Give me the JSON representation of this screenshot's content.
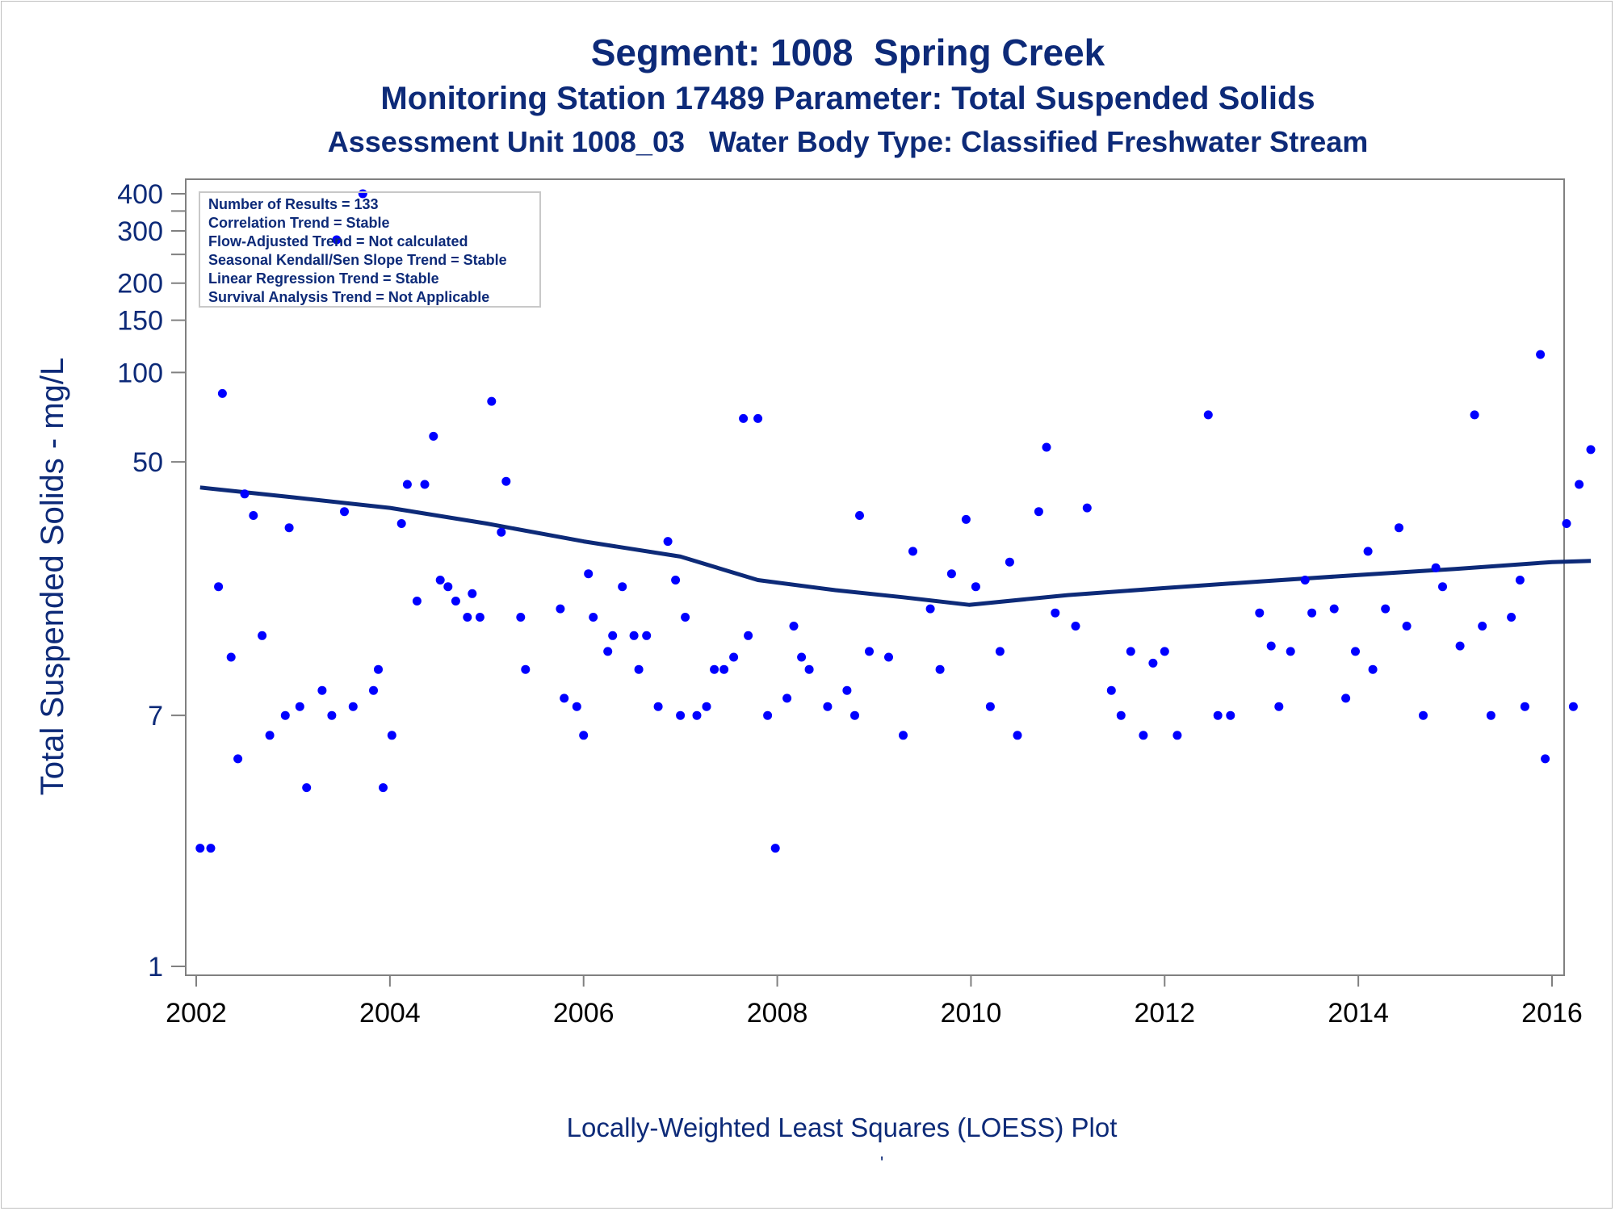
{
  "titles": {
    "line1": "Segment: 1008  Spring Creek",
    "line2": "Monitoring Station 17489 Parameter: Total Suspended Solids",
    "line3": "Assessment Unit 1008_03   Water Body Type: Classified Freshwater Stream"
  },
  "footnote": "Locally-Weighted Least Squares (LOESS) Plot",
  "footnote_mark": "'",
  "stats_box": [
    "Number of Results = 133",
    "Correlation Trend = Stable",
    "Flow-Adjusted Trend = Not calculated",
    "Seasonal Kendall/Sen Slope Trend = Stable",
    "Linear Regression Trend = Stable",
    "Survival Analysis Trend = Not Applicable"
  ],
  "colors": {
    "title": "#0d2a78",
    "points": "#0000ff",
    "loess_line": "#0d2a78",
    "axis": "#808080"
  },
  "chart_data": {
    "type": "scatter",
    "ylabel": "Total Suspended Solids - mg/L",
    "xlabel": "",
    "yscale": "log",
    "xlim": [
      2002,
      2016
    ],
    "ylim": [
      1,
      420
    ],
    "xticks": [
      "2002",
      "2004",
      "2006",
      "2008",
      "2010",
      "2012",
      "2014",
      "2016"
    ],
    "yticks": [
      {
        "value": 1,
        "label": "1"
      },
      {
        "value": 7,
        "label": "7"
      },
      {
        "value": 50,
        "label": "50"
      },
      {
        "value": 100,
        "label": "100"
      },
      {
        "value": 150,
        "label": "150"
      },
      {
        "value": 200,
        "label": "200"
      },
      {
        "value": 300,
        "label": "300"
      },
      {
        "value": 400,
        "label": "400"
      }
    ],
    "minor_yticks": [
      250,
      350
    ],
    "series": [
      {
        "name": "",
        "kind": "scatter",
        "points": [
          [
            2002.04,
            2.5
          ],
          [
            2002.15,
            2.5
          ],
          [
            2002.23,
            19
          ],
          [
            2002.27,
            85
          ],
          [
            2002.36,
            11
          ],
          [
            2002.43,
            5
          ],
          [
            2002.5,
            39
          ],
          [
            2002.59,
            33
          ],
          [
            2002.68,
            13
          ],
          [
            2002.76,
            6
          ],
          [
            2002.92,
            7
          ],
          [
            2002.96,
            30
          ],
          [
            2003.07,
            7.5
          ],
          [
            2003.14,
            4
          ],
          [
            2003.3,
            8.5
          ],
          [
            2003.4,
            7
          ],
          [
            2003.45,
            280
          ],
          [
            2003.53,
            34
          ],
          [
            2003.62,
            7.5
          ],
          [
            2003.72,
            400
          ],
          [
            2003.83,
            8.5
          ],
          [
            2003.88,
            10
          ],
          [
            2003.93,
            4
          ],
          [
            2004.02,
            6
          ],
          [
            2004.12,
            31
          ],
          [
            2004.18,
            42
          ],
          [
            2004.28,
            17
          ],
          [
            2004.36,
            42
          ],
          [
            2004.45,
            61
          ],
          [
            2004.52,
            20
          ],
          [
            2004.6,
            19
          ],
          [
            2004.68,
            17
          ],
          [
            2004.8,
            15
          ],
          [
            2004.85,
            18
          ],
          [
            2004.93,
            15
          ],
          [
            2005.05,
            80
          ],
          [
            2005.15,
            29
          ],
          [
            2005.2,
            43
          ],
          [
            2005.35,
            15
          ],
          [
            2005.4,
            10
          ],
          [
            2005.76,
            16
          ],
          [
            2005.8,
            8
          ],
          [
            2005.93,
            7.5
          ],
          [
            2006.0,
            6
          ],
          [
            2006.05,
            21
          ],
          [
            2006.1,
            15
          ],
          [
            2006.25,
            11.5
          ],
          [
            2006.3,
            13
          ],
          [
            2006.4,
            19
          ],
          [
            2006.52,
            13
          ],
          [
            2006.57,
            10
          ],
          [
            2006.65,
            13
          ],
          [
            2006.77,
            7.5
          ],
          [
            2006.87,
            27
          ],
          [
            2006.95,
            20
          ],
          [
            2007.0,
            7
          ],
          [
            2007.05,
            15
          ],
          [
            2007.17,
            7
          ],
          [
            2007.27,
            7.5
          ],
          [
            2007.35,
            10
          ],
          [
            2007.45,
            10
          ],
          [
            2007.55,
            11
          ],
          [
            2007.65,
            70
          ],
          [
            2007.7,
            13
          ],
          [
            2007.8,
            70
          ],
          [
            2007.9,
            7
          ],
          [
            2007.98,
            2.5
          ],
          [
            2008.1,
            8
          ],
          [
            2008.17,
            14
          ],
          [
            2008.25,
            11
          ],
          [
            2008.33,
            10
          ],
          [
            2008.52,
            7.5
          ],
          [
            2008.72,
            8.5
          ],
          [
            2008.8,
            7
          ],
          [
            2008.85,
            33
          ],
          [
            2008.95,
            11.5
          ],
          [
            2009.15,
            11
          ],
          [
            2009.3,
            6
          ],
          [
            2009.4,
            25
          ],
          [
            2009.58,
            16
          ],
          [
            2009.68,
            10
          ],
          [
            2009.8,
            21
          ],
          [
            2009.95,
            32
          ],
          [
            2010.05,
            19
          ],
          [
            2010.2,
            7.5
          ],
          [
            2010.3,
            11.5
          ],
          [
            2010.4,
            23
          ],
          [
            2010.48,
            6
          ],
          [
            2010.7,
            34
          ],
          [
            2010.78,
            56
          ],
          [
            2010.87,
            15.5
          ],
          [
            2011.08,
            14
          ],
          [
            2011.2,
            35
          ],
          [
            2011.45,
            8.5
          ],
          [
            2011.55,
            7
          ],
          [
            2011.65,
            11.5
          ],
          [
            2011.78,
            6
          ],
          [
            2011.88,
            10.5
          ],
          [
            2012.0,
            11.5
          ],
          [
            2012.13,
            6
          ],
          [
            2012.45,
            72
          ],
          [
            2012.55,
            7
          ],
          [
            2012.68,
            7
          ],
          [
            2012.98,
            15.5
          ],
          [
            2013.1,
            12
          ],
          [
            2013.18,
            7.5
          ],
          [
            2013.3,
            11.5
          ],
          [
            2013.45,
            20
          ],
          [
            2013.52,
            15.5
          ],
          [
            2013.75,
            16
          ],
          [
            2013.87,
            8
          ],
          [
            2013.97,
            11.5
          ],
          [
            2014.1,
            25
          ],
          [
            2014.15,
            10
          ],
          [
            2014.28,
            16
          ],
          [
            2014.42,
            30
          ],
          [
            2014.5,
            14
          ],
          [
            2014.67,
            7
          ],
          [
            2014.8,
            22
          ],
          [
            2014.87,
            19
          ],
          [
            2015.05,
            12
          ],
          [
            2015.2,
            72
          ],
          [
            2015.28,
            14
          ],
          [
            2015.37,
            7
          ],
          [
            2015.58,
            15
          ],
          [
            2015.67,
            20
          ],
          [
            2015.72,
            7.5
          ],
          [
            2015.88,
            115
          ],
          [
            2015.93,
            5
          ],
          [
            2016.15,
            31
          ],
          [
            2016.22,
            7.5
          ],
          [
            2016.28,
            42
          ],
          [
            2016.4,
            55
          ]
        ]
      },
      {
        "name": "",
        "kind": "line",
        "points": [
          [
            2002.04,
            41
          ],
          [
            2003.0,
            38
          ],
          [
            2004.0,
            35
          ],
          [
            2005.0,
            31
          ],
          [
            2006.0,
            27
          ],
          [
            2007.0,
            24
          ],
          [
            2007.8,
            20
          ],
          [
            2008.6,
            18.5
          ],
          [
            2009.3,
            17.5
          ],
          [
            2009.98,
            16.5
          ],
          [
            2011.0,
            17.8
          ],
          [
            2012.0,
            18.8
          ],
          [
            2013.0,
            19.8
          ],
          [
            2014.0,
            20.8
          ],
          [
            2015.0,
            21.8
          ],
          [
            2016.0,
            23
          ],
          [
            2016.4,
            23.2
          ]
        ]
      }
    ]
  }
}
